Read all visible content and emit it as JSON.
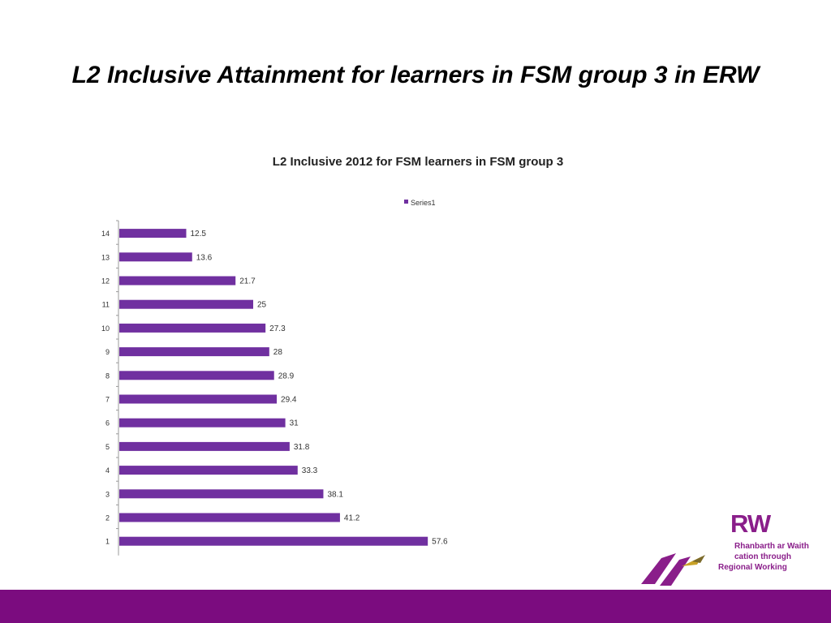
{
  "slide": {
    "title": "L2 Inclusive Attainment for learners in FSM group 3 in ERW"
  },
  "chart_data": {
    "type": "bar",
    "orientation": "horizontal",
    "title": "L2 Inclusive 2012 for FSM learners in FSM group 3",
    "categories": [
      "1",
      "2",
      "3",
      "4",
      "5",
      "6",
      "7",
      "8",
      "9",
      "10",
      "11",
      "12",
      "13",
      "14"
    ],
    "series": [
      {
        "name": "Series1",
        "values": [
          57.6,
          41.2,
          38.1,
          33.3,
          31.8,
          31,
          29.4,
          28.9,
          28,
          27.3,
          25,
          21.7,
          13.6,
          12.5
        ],
        "labels": [
          "57.6",
          "41.2",
          "38.1",
          "33.3",
          "31.8",
          "31",
          "29.4",
          "28.9",
          "28",
          "27.3",
          "25",
          "21.7",
          "13.6",
          "12.5"
        ],
        "color": "#7030a0"
      }
    ],
    "xlim": [
      0,
      100
    ],
    "xlabel": "",
    "ylabel": "",
    "grid": false,
    "legend_position": "top"
  },
  "logo": {
    "letters": "RW",
    "line1": "Rhanbarth ar Waith",
    "line2": "cation through",
    "line3": "Regional Working",
    "color": "#8a1e8a",
    "accent": "#c9a227"
  },
  "colors": {
    "footer": "#7b0c7f"
  }
}
